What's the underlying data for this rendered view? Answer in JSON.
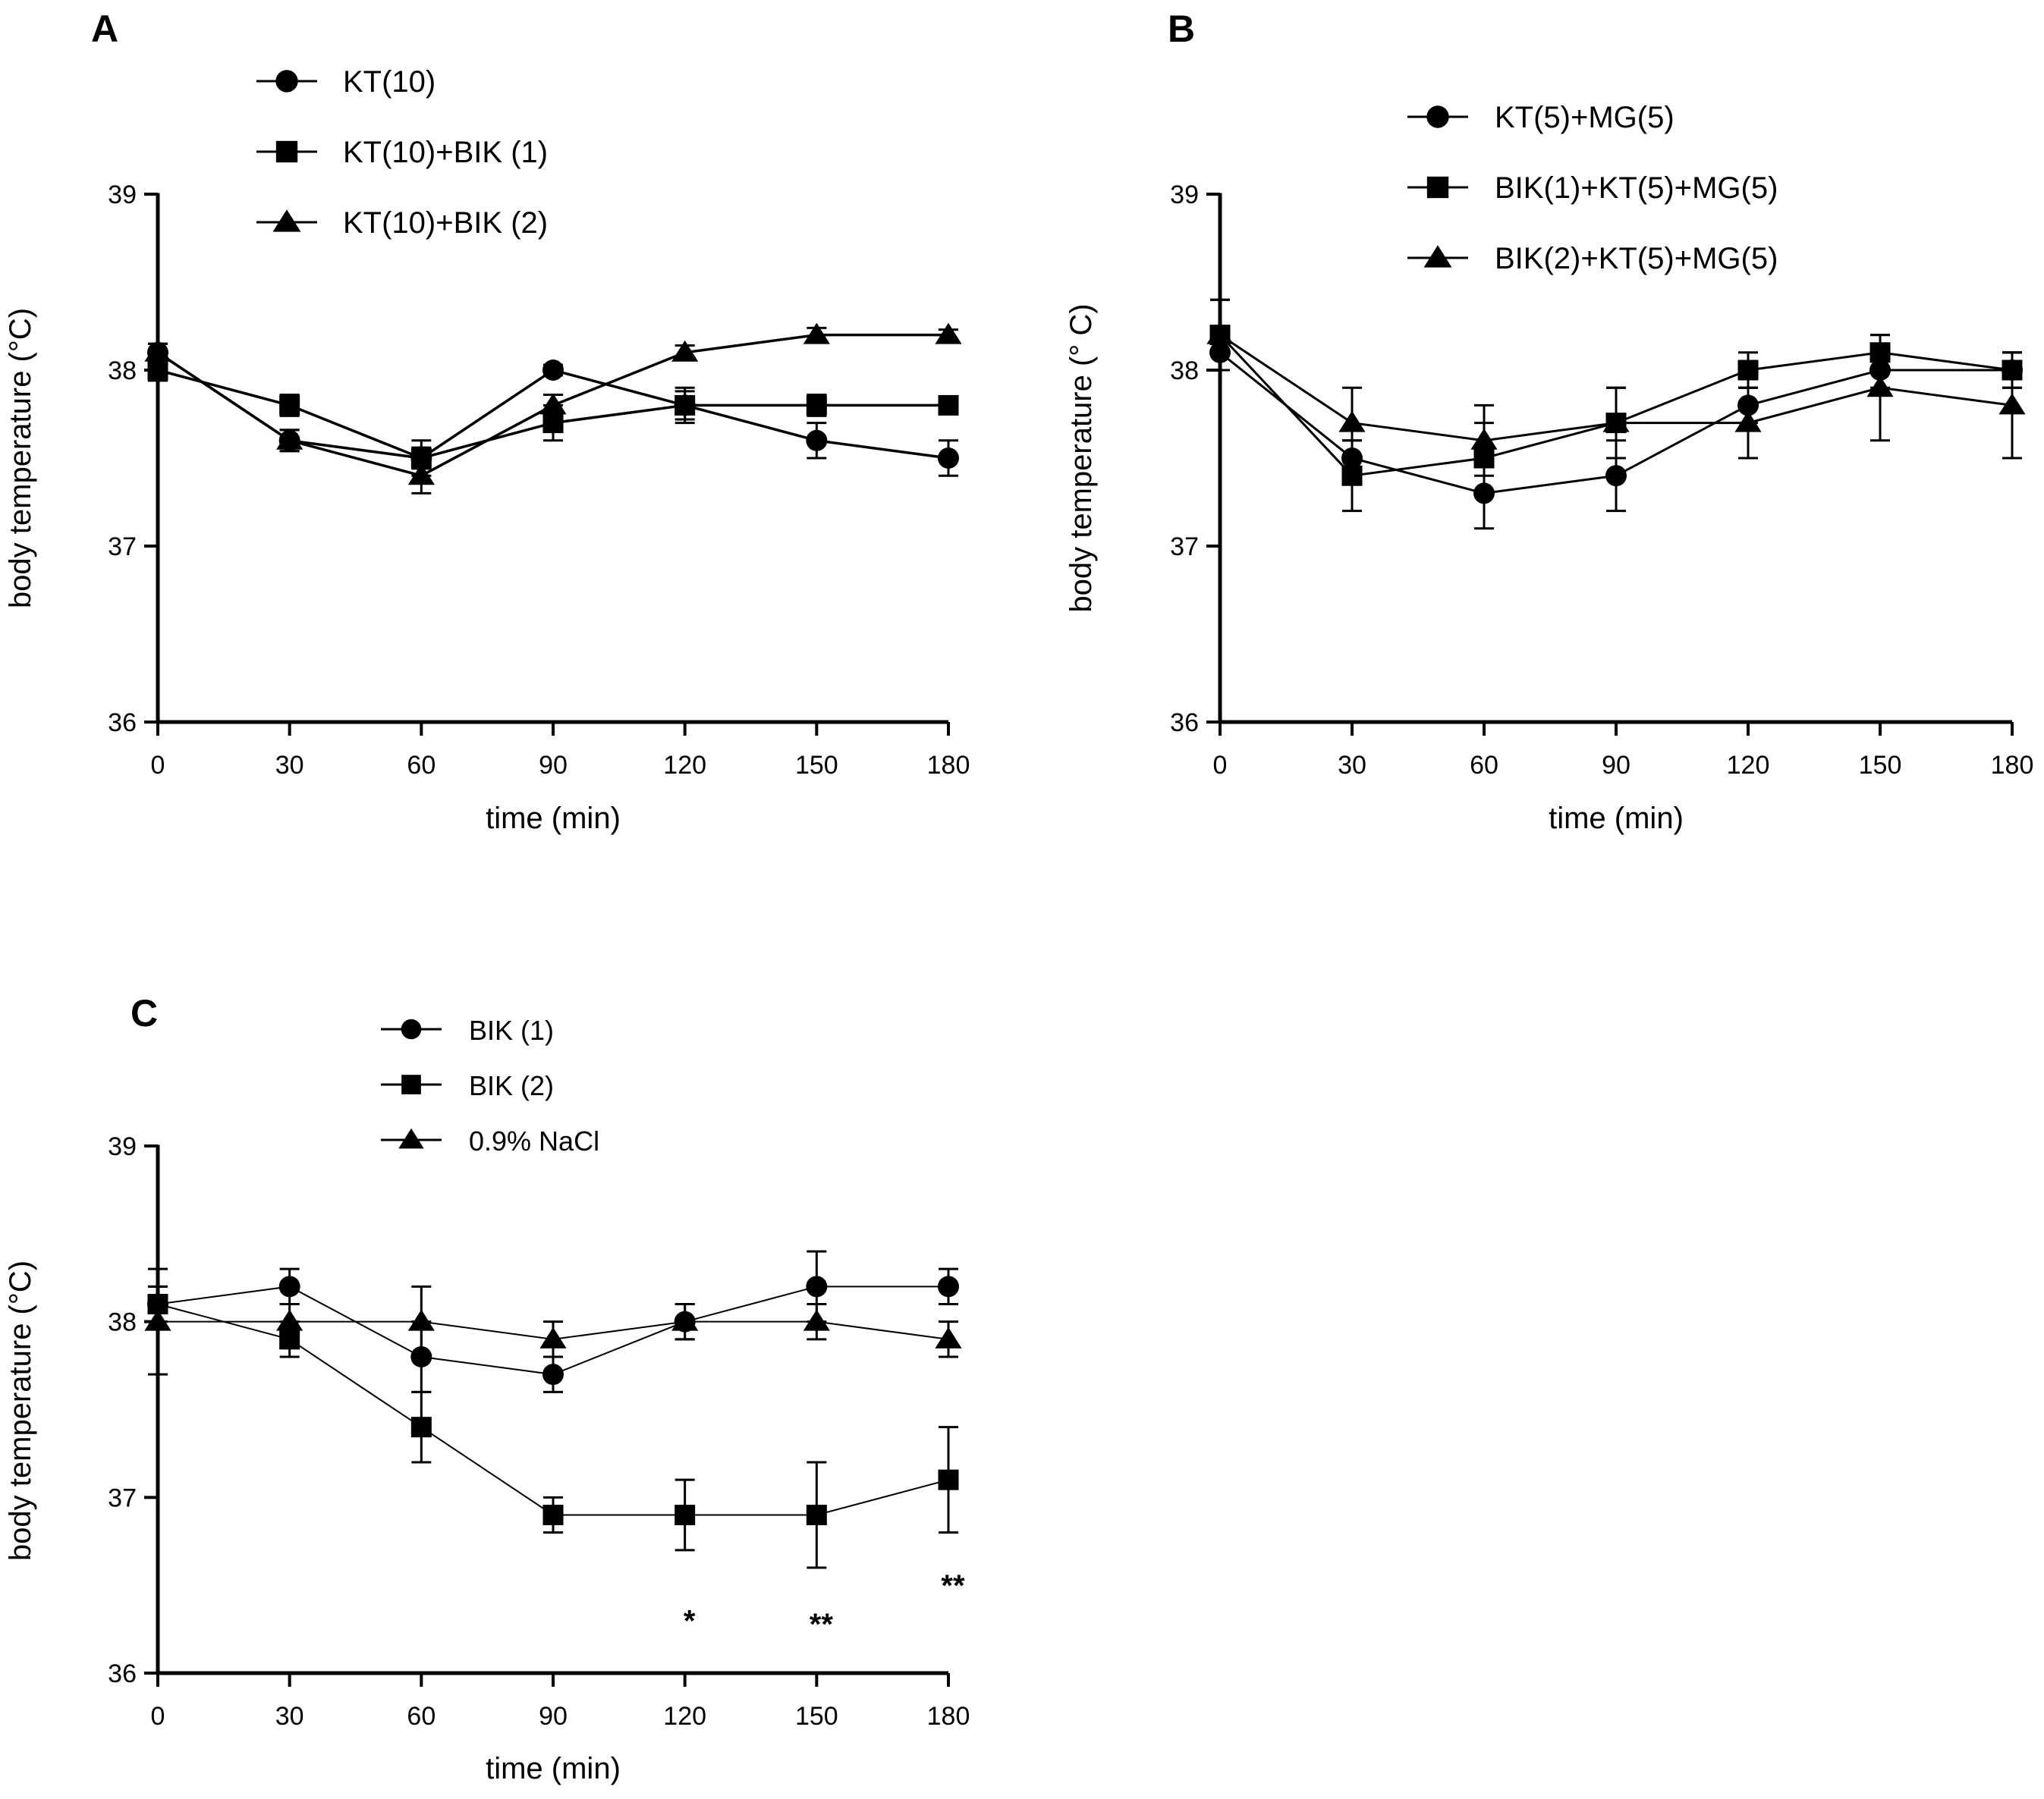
{
  "chart_data": [
    {
      "panel": "A",
      "type": "line",
      "title": "",
      "xlabel": "time (min)",
      "ylabel": "body temperature (°C)",
      "x": [
        0,
        30,
        60,
        90,
        120,
        150,
        180
      ],
      "xticks": [
        "0",
        "30",
        "60",
        "90",
        "120",
        "150",
        "180"
      ],
      "yticks": [
        "36",
        "37",
        "38",
        "39"
      ],
      "xlim": [
        0,
        180
      ],
      "ylim": [
        36,
        39
      ],
      "legend_position": "top-left",
      "series": [
        {
          "name": "KT(10)",
          "marker": "circle",
          "values": [
            38.1,
            37.6,
            37.5,
            38.0,
            37.8,
            37.6,
            37.5
          ],
          "errors": [
            0.05,
            0.06,
            0.06,
            0.03,
            0.08,
            0.1,
            0.1
          ]
        },
        {
          "name": "KT(10)+BIK (1)",
          "marker": "square",
          "values": [
            38.0,
            37.8,
            37.5,
            37.7,
            37.8,
            37.8,
            37.8
          ],
          "errors": [
            0.06,
            0.06,
            0.1,
            0.1,
            0.1,
            0.06,
            0.04
          ]
        },
        {
          "name": "KT(10)+BIK (2)",
          "marker": "triangle",
          "values": [
            38.1,
            37.6,
            37.4,
            37.8,
            38.1,
            38.2,
            38.2
          ],
          "errors": [
            0.05,
            0.06,
            0.1,
            0.06,
            0.04,
            0.04,
            0.03
          ]
        }
      ],
      "annotations": []
    },
    {
      "panel": "B",
      "type": "line",
      "title": "",
      "xlabel": "time (min)",
      "ylabel": "body temperature (° C)",
      "x": [
        0,
        30,
        60,
        90,
        120,
        150,
        180
      ],
      "xticks": [
        "0",
        "30",
        "60",
        "90",
        "120",
        "150",
        "180"
      ],
      "yticks": [
        "36",
        "37",
        "38",
        "39"
      ],
      "xlim": [
        0,
        180
      ],
      "ylim": [
        36,
        39
      ],
      "legend_position": "top-center",
      "series": [
        {
          "name": "KT(5)+MG(5)",
          "marker": "circle",
          "values": [
            38.1,
            37.5,
            37.3,
            37.4,
            37.8,
            38.0,
            38.0
          ],
          "errors": [
            0.1,
            0.1,
            0.2,
            0.2,
            0.1,
            0.1,
            0.1
          ]
        },
        {
          "name": "BIK(1)+KT(5)+MG(5)",
          "marker": "square",
          "values": [
            38.2,
            37.4,
            37.5,
            37.7,
            38.0,
            38.1,
            38.0
          ],
          "errors": [
            0.2,
            0.2,
            0.2,
            0.2,
            0.1,
            0.1,
            0.1
          ]
        },
        {
          "name": "BIK(2)+KT(5)+MG(5)",
          "marker": "triangle",
          "values": [
            38.2,
            37.7,
            37.6,
            37.7,
            37.7,
            37.9,
            37.8
          ],
          "errors": [
            0.2,
            0.2,
            0.2,
            0.2,
            0.2,
            0.3,
            0.3
          ]
        }
      ],
      "annotations": []
    },
    {
      "panel": "C",
      "type": "line",
      "title": "",
      "xlabel": "time (min)",
      "ylabel": "body temperature (°C)",
      "x": [
        0,
        30,
        60,
        90,
        120,
        150,
        180
      ],
      "xticks": [
        "0",
        "30",
        "60",
        "90",
        "120",
        "150",
        "180"
      ],
      "yticks": [
        "36",
        "37",
        "38",
        "39"
      ],
      "xlim": [
        0,
        180
      ],
      "ylim": [
        36,
        39
      ],
      "legend_position": "top-center",
      "series": [
        {
          "name": "BIK (1)",
          "marker": "circle",
          "values": [
            38.1,
            38.2,
            37.8,
            37.7,
            38.0,
            38.2,
            38.2
          ],
          "errors": [
            0.1,
            0.1,
            0.2,
            0.1,
            0.1,
            0.2,
            0.1
          ]
        },
        {
          "name": "BIK (2)",
          "marker": "square",
          "values": [
            38.1,
            37.9,
            37.4,
            36.9,
            36.9,
            36.9,
            37.1
          ],
          "errors": [
            0.1,
            0.1,
            0.2,
            0.1,
            0.2,
            0.3,
            0.3
          ]
        },
        {
          "name": "0.9% NaCl",
          "marker": "triangle",
          "values": [
            38.0,
            38.0,
            38.0,
            37.9,
            38.0,
            38.0,
            37.9
          ],
          "errors": [
            0.3,
            0.1,
            0.2,
            0.1,
            0.1,
            0.1,
            0.1
          ]
        }
      ],
      "annotations": [
        {
          "text": "*",
          "x": 120,
          "y": 36.3
        },
        {
          "text": "**",
          "x": 150,
          "y": 36.28
        },
        {
          "text": "**",
          "x": 180,
          "y": 36.5
        }
      ]
    }
  ]
}
